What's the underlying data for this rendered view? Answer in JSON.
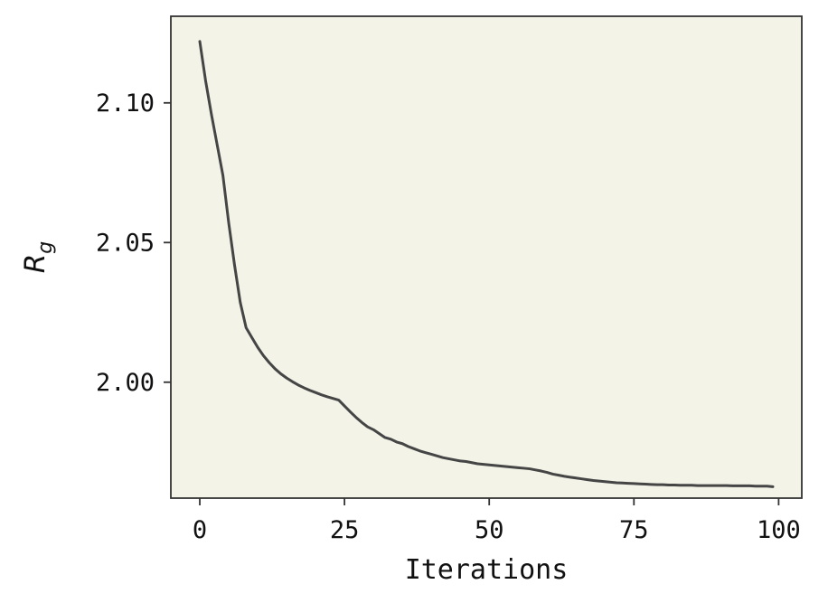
{
  "chart_data": {
    "type": "line",
    "xlabel": "Iterations",
    "ylabel": "R",
    "ylabel_subscript": "g",
    "xlim": [
      -5,
      104
    ],
    "ylim": [
      1.9585,
      2.131
    ],
    "x_ticks": [
      0,
      25,
      50,
      75,
      100
    ],
    "x_tick_labels": [
      "0",
      "25",
      "50",
      "75",
      "100"
    ],
    "y_ticks": [
      2.0,
      2.05,
      2.1
    ],
    "y_tick_labels": [
      "2.00",
      "2.05",
      "2.10"
    ],
    "grid": false,
    "colors": {
      "line": "#454545",
      "plot_background": "#f3f3e8",
      "axes": "#333333"
    },
    "series": [
      {
        "x": [
          0,
          1,
          2,
          3,
          4,
          5,
          6,
          7,
          8,
          9,
          10,
          11,
          12,
          13,
          14,
          15,
          16,
          17,
          18,
          19,
          20,
          21,
          22,
          23,
          24,
          25,
          26,
          27,
          28,
          29,
          30,
          31,
          32,
          33,
          34,
          35,
          36,
          37,
          38,
          39,
          40,
          41,
          42,
          43,
          44,
          45,
          46,
          47,
          48,
          49,
          50,
          51,
          52,
          53,
          54,
          55,
          56,
          57,
          58,
          59,
          60,
          61,
          62,
          63,
          64,
          65,
          66,
          67,
          68,
          69,
          70,
          71,
          72,
          73,
          74,
          75,
          76,
          77,
          78,
          79,
          80,
          81,
          82,
          83,
          84,
          85,
          86,
          87,
          88,
          89,
          90,
          91,
          92,
          93,
          94,
          95,
          96,
          97,
          98,
          99
        ],
        "values": [
          2.122,
          2.108,
          2.096,
          2.085,
          2.074,
          2.057,
          2.042,
          2.0285,
          2.0195,
          2.016,
          2.0125,
          2.0095,
          2.007,
          2.0048,
          2.003,
          2.0015,
          2.0002,
          1.999,
          1.998,
          1.9971,
          1.9963,
          1.9955,
          1.9948,
          1.9942,
          1.9936,
          1.9915,
          1.9894,
          1.9874,
          1.9856,
          1.984,
          1.983,
          1.9816,
          1.9802,
          1.9796,
          1.9786,
          1.978,
          1.977,
          1.9762,
          1.9754,
          1.9748,
          1.9742,
          1.9736,
          1.973,
          1.9726,
          1.9722,
          1.9718,
          1.9716,
          1.9712,
          1.9708,
          1.9706,
          1.9704,
          1.9702,
          1.97,
          1.9698,
          1.9696,
          1.9694,
          1.9692,
          1.969,
          1.9686,
          1.9682,
          1.9677,
          1.9671,
          1.9667,
          1.9663,
          1.966,
          1.9657,
          1.9654,
          1.9651,
          1.9648,
          1.9646,
          1.9644,
          1.9642,
          1.964,
          1.9639,
          1.9638,
          1.9637,
          1.9636,
          1.9635,
          1.9634,
          1.9633,
          1.9633,
          1.9632,
          1.9632,
          1.9631,
          1.9631,
          1.9631,
          1.963,
          1.963,
          1.963,
          1.963,
          1.963,
          1.963,
          1.9629,
          1.9629,
          1.9629,
          1.9629,
          1.9628,
          1.9628,
          1.9628,
          1.9626
        ]
      }
    ]
  }
}
